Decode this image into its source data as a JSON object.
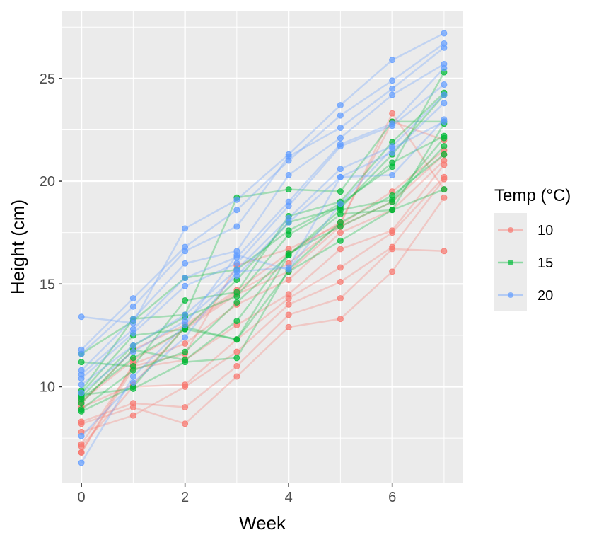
{
  "chart_data": {
    "type": "line",
    "title": "",
    "xlabel": "Week",
    "ylabel": "Height (cm)",
    "xlim": [
      -0.37,
      7.37
    ],
    "ylim": [
      5.3,
      28.3
    ],
    "x": [
      0,
      1,
      2,
      3,
      4,
      5,
      6,
      7
    ],
    "x_ticks": [
      0,
      2,
      4,
      6
    ],
    "x_tick_labels": [
      "0",
      "2",
      "4",
      "6"
    ],
    "y_ticks": [
      10,
      15,
      20,
      25
    ],
    "y_tick_labels": [
      "10",
      "15",
      "20",
      "25"
    ],
    "grid": true,
    "legend": {
      "title": "Temp (°C)",
      "placement": "right",
      "entries": [
        "10",
        "15",
        "20"
      ]
    },
    "colors": {
      "10": "#F8766D",
      "15": "#00BA38",
      "20": "#619CFF",
      "panel": "#EBEBEB"
    },
    "groups": [
      {
        "name": "10",
        "series": [
          [
            8.2,
            9.0,
            8.2,
            10.5,
            12.9,
            13.3,
            15.6,
            19.2
          ],
          [
            8.3,
            9.2,
            9.0,
            11.0,
            13.5,
            14.3,
            16.7,
            16.6
          ],
          [
            7.8,
            8.6,
            10.0,
            11.7,
            14.0,
            15.1,
            16.8,
            20.1
          ],
          [
            7.1,
            10.0,
            10.1,
            12.3,
            14.3,
            15.8,
            17.5,
            20.2
          ],
          [
            6.8,
            10.9,
            11.3,
            13.0,
            14.5,
            16.7,
            17.6,
            20.8
          ],
          [
            6.8,
            11.1,
            12.1,
            14.0,
            15.2,
            17.5,
            18.6,
            21.0
          ],
          [
            9.3,
            11.3,
            12.8,
            14.5,
            15.6,
            17.8,
            19.0,
            21.3
          ],
          [
            9.0,
            10.1,
            12.9,
            14.6,
            16.0,
            17.9,
            19.5,
            21.5
          ],
          [
            9.2,
            11.8,
            13.0,
            14.7,
            16.5,
            18.0,
            22.9,
            22.0
          ],
          [
            7.2,
            11.0,
            11.6,
            15.9,
            16.7,
            17.9,
            23.3,
            19.6
          ]
        ]
      },
      {
        "name": "15",
        "series": [
          [
            9.8,
            13.3,
            13.5,
            19.2,
            19.6,
            19.5,
            22.9,
            22.9
          ],
          [
            11.6,
            13.2,
            15.3,
            15.7,
            17.6,
            18.9,
            20.7,
            25.3
          ],
          [
            11.2,
            11.0,
            14.2,
            14.6,
            18.3,
            19.0,
            21.9,
            24.3
          ],
          [
            9.7,
            12.5,
            12.8,
            15.2,
            18.0,
            18.7,
            21.3,
            24.2
          ],
          [
            9.5,
            12.0,
            13.4,
            14.4,
            17.4,
            18.8,
            20.9,
            22.2
          ],
          [
            9.2,
            11.8,
            11.3,
            13.2,
            16.5,
            17.8,
            19.0,
            21.7
          ],
          [
            8.9,
            10.8,
            11.7,
            14.1,
            16.4,
            18.6,
            19.1,
            22.1
          ],
          [
            8.8,
            10.0,
            12.9,
            12.3,
            15.6,
            17.1,
            18.6,
            19.6
          ],
          [
            9.6,
            9.9,
            11.2,
            11.4,
            15.7,
            18.0,
            19.3,
            21.3
          ],
          [
            9.4,
            11.4,
            12.8,
            12.3,
            16.4,
            18.4,
            18.6,
            22.8
          ]
        ]
      },
      {
        "name": "20",
        "series": [
          [
            13.4,
            13.1,
            17.7,
            19.1,
            21.3,
            23.7,
            25.9,
            27.2
          ],
          [
            11.8,
            14.3,
            16.8,
            18.6,
            21.0,
            23.2,
            24.9,
            26.7
          ],
          [
            11.6,
            13.9,
            16.6,
            17.8,
            21.2,
            22.6,
            24.5,
            26.5
          ],
          [
            10.8,
            13.3,
            16.0,
            16.6,
            20.3,
            22.1,
            24.2,
            25.7
          ],
          [
            10.6,
            12.8,
            15.3,
            16.3,
            19.0,
            21.8,
            22.8,
            25.5
          ],
          [
            10.4,
            12.6,
            14.9,
            16.0,
            18.8,
            21.7,
            22.7,
            24.7
          ],
          [
            10.1,
            12.0,
            13.5,
            15.7,
            18.2,
            20.6,
            21.7,
            24.2
          ],
          [
            9.7,
            11.7,
            13.2,
            15.4,
            18.0,
            20.2,
            21.4,
            23.8
          ],
          [
            7.6,
            10.2,
            12.4,
            15.6,
            15.8,
            20.2,
            20.3,
            23.0
          ],
          [
            6.3,
            10.5,
            13.0,
            16.4,
            15.7,
            18.9,
            21.6,
            22.9
          ]
        ]
      }
    ]
  }
}
